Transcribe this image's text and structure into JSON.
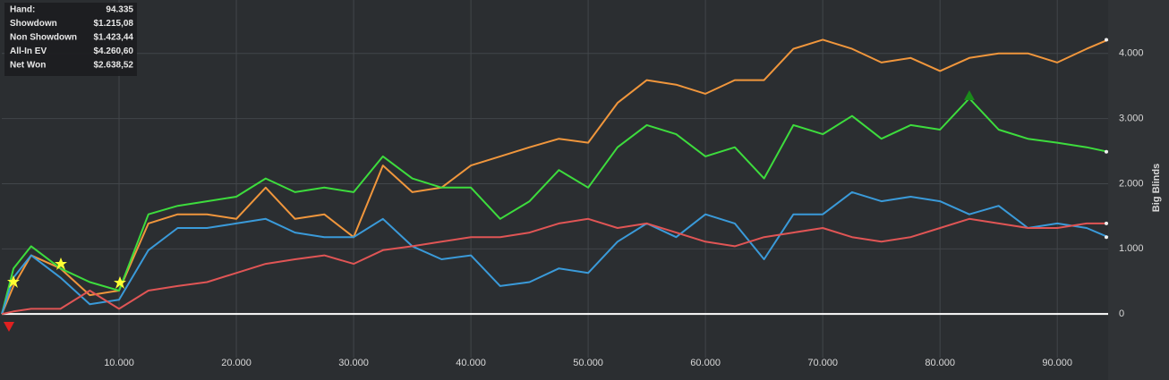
{
  "chart_data": {
    "type": "line",
    "y_label": "Big Blinds",
    "stats": [
      {
        "label": "Hand:",
        "value": "94.335"
      },
      {
        "label": "Showdown",
        "value": "$1.215,08"
      },
      {
        "label": "Non Showdown",
        "value": "$1.423,44"
      },
      {
        "label": "All-In EV",
        "value": "$4.260,60"
      },
      {
        "label": "Net Won",
        "value": "$2.638,52"
      }
    ],
    "x": [
      0,
      1000,
      2500,
      5000,
      7500,
      10000,
      12500,
      15000,
      17500,
      20000,
      22500,
      25000,
      27500,
      30000,
      32500,
      35000,
      37500,
      40000,
      42500,
      45000,
      47500,
      50000,
      52500,
      55000,
      57500,
      60000,
      62500,
      65000,
      67500,
      70000,
      72500,
      75000,
      77500,
      80000,
      82500,
      85000,
      87500,
      90000,
      92500,
      94335
    ],
    "series": [
      {
        "color": "#f0963c",
        "values": [
          0,
          430,
          900,
          700,
          290,
          360,
          1390,
          1530,
          1530,
          1460,
          1940,
          1460,
          1530,
          1180,
          2280,
          1870,
          1940,
          2280,
          2420,
          2560,
          2690,
          2630,
          3240,
          3590,
          3520,
          3380,
          3590,
          3590,
          4070,
          4210,
          4070,
          3860,
          3930,
          3730,
          3930,
          4000,
          4000,
          3860,
          4070,
          4210
        ]
      },
      {
        "color": "#3ddc3d",
        "values": [
          0,
          700,
          1040,
          700,
          490,
          360,
          1530,
          1660,
          1730,
          1800,
          2080,
          1870,
          1940,
          1870,
          2420,
          2080,
          1940,
          1940,
          1460,
          1730,
          2210,
          1940,
          2560,
          2900,
          2760,
          2420,
          2560,
          2080,
          2900,
          2760,
          3040,
          2690,
          2900,
          2830,
          3310,
          2830,
          2690,
          2630,
          2560,
          2490
        ]
      },
      {
        "color": "#3a9ad9",
        "values": [
          0,
          560,
          900,
          560,
          150,
          220,
          980,
          1320,
          1320,
          1390,
          1460,
          1250,
          1180,
          1180,
          1460,
          1040,
          840,
          900,
          430,
          490,
          700,
          630,
          1110,
          1390,
          1180,
          1530,
          1390,
          840,
          1530,
          1530,
          1870,
          1730,
          1800,
          1730,
          1530,
          1660,
          1320,
          1390,
          1320,
          1180
        ]
      },
      {
        "color": "#e05555",
        "values": [
          0,
          40,
          80,
          80,
          360,
          80,
          360,
          430,
          490,
          630,
          770,
          840,
          900,
          770,
          980,
          1040,
          1110,
          1180,
          1180,
          1250,
          1390,
          1460,
          1320,
          1390,
          1250,
          1110,
          1040,
          1180,
          1250,
          1320,
          1180,
          1110,
          1180,
          1320,
          1460,
          1390,
          1320,
          1320,
          1390,
          1390
        ]
      }
    ],
    "xlim": [
      0,
      94335
    ],
    "ylim": [
      -670,
      4820
    ],
    "xticks": [
      {
        "value": 10000,
        "label": "10.000"
      },
      {
        "value": 20000,
        "label": "20.000"
      },
      {
        "value": 30000,
        "label": "30.000"
      },
      {
        "value": 40000,
        "label": "40.000"
      },
      {
        "value": 50000,
        "label": "50.000"
      },
      {
        "value": 60000,
        "label": "60.000"
      },
      {
        "value": 70000,
        "label": "70.000"
      },
      {
        "value": 80000,
        "label": "80.000"
      },
      {
        "value": 90000,
        "label": "90.000"
      }
    ],
    "yticks": [
      0,
      {
        "value": 1000,
        "label": "1.000"
      },
      {
        "value": 2000,
        "label": "2.000"
      },
      {
        "value": 3000,
        "label": "3.000"
      },
      {
        "value": 4000,
        "label": "4.000"
      }
    ],
    "grid": true
  }
}
